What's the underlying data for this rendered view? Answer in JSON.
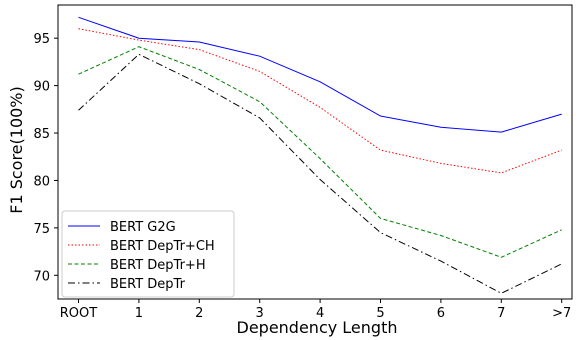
{
  "chart_data": {
    "type": "line",
    "categories": [
      "ROOT",
      "1",
      "2",
      "3",
      "4",
      "5",
      "6",
      "7",
      ">7"
    ],
    "series": [
      {
        "name": "BERT G2G",
        "color": "#0000ff",
        "dash": "solid",
        "values": [
          97.2,
          95.0,
          94.6,
          93.1,
          90.4,
          86.8,
          85.6,
          85.1,
          87.0
        ]
      },
      {
        "name": "BERT DepTr+CH",
        "color": "#ff0000",
        "dash": "dotted",
        "values": [
          96.0,
          94.8,
          93.8,
          91.5,
          87.7,
          83.2,
          81.8,
          80.8,
          83.2
        ]
      },
      {
        "name": "BERT DepTr+H",
        "color": "#008000",
        "dash": "dashed",
        "values": [
          91.2,
          94.1,
          91.7,
          88.3,
          82.3,
          76.0,
          74.2,
          71.9,
          74.8
        ]
      },
      {
        "name": "BERT DepTr",
        "color": "#000000",
        "dash": "dashdot",
        "values": [
          87.4,
          93.3,
          90.2,
          86.6,
          80.1,
          74.5,
          71.5,
          68.1,
          71.2
        ]
      }
    ],
    "yticks": [
      70,
      75,
      80,
      85,
      90,
      95
    ],
    "xlabel": "Dependency Length",
    "ylabel": "F1 Score(100%)",
    "ylim": [
      67.5,
      98.5
    ],
    "grid": false,
    "legend_position": "lower-left"
  }
}
